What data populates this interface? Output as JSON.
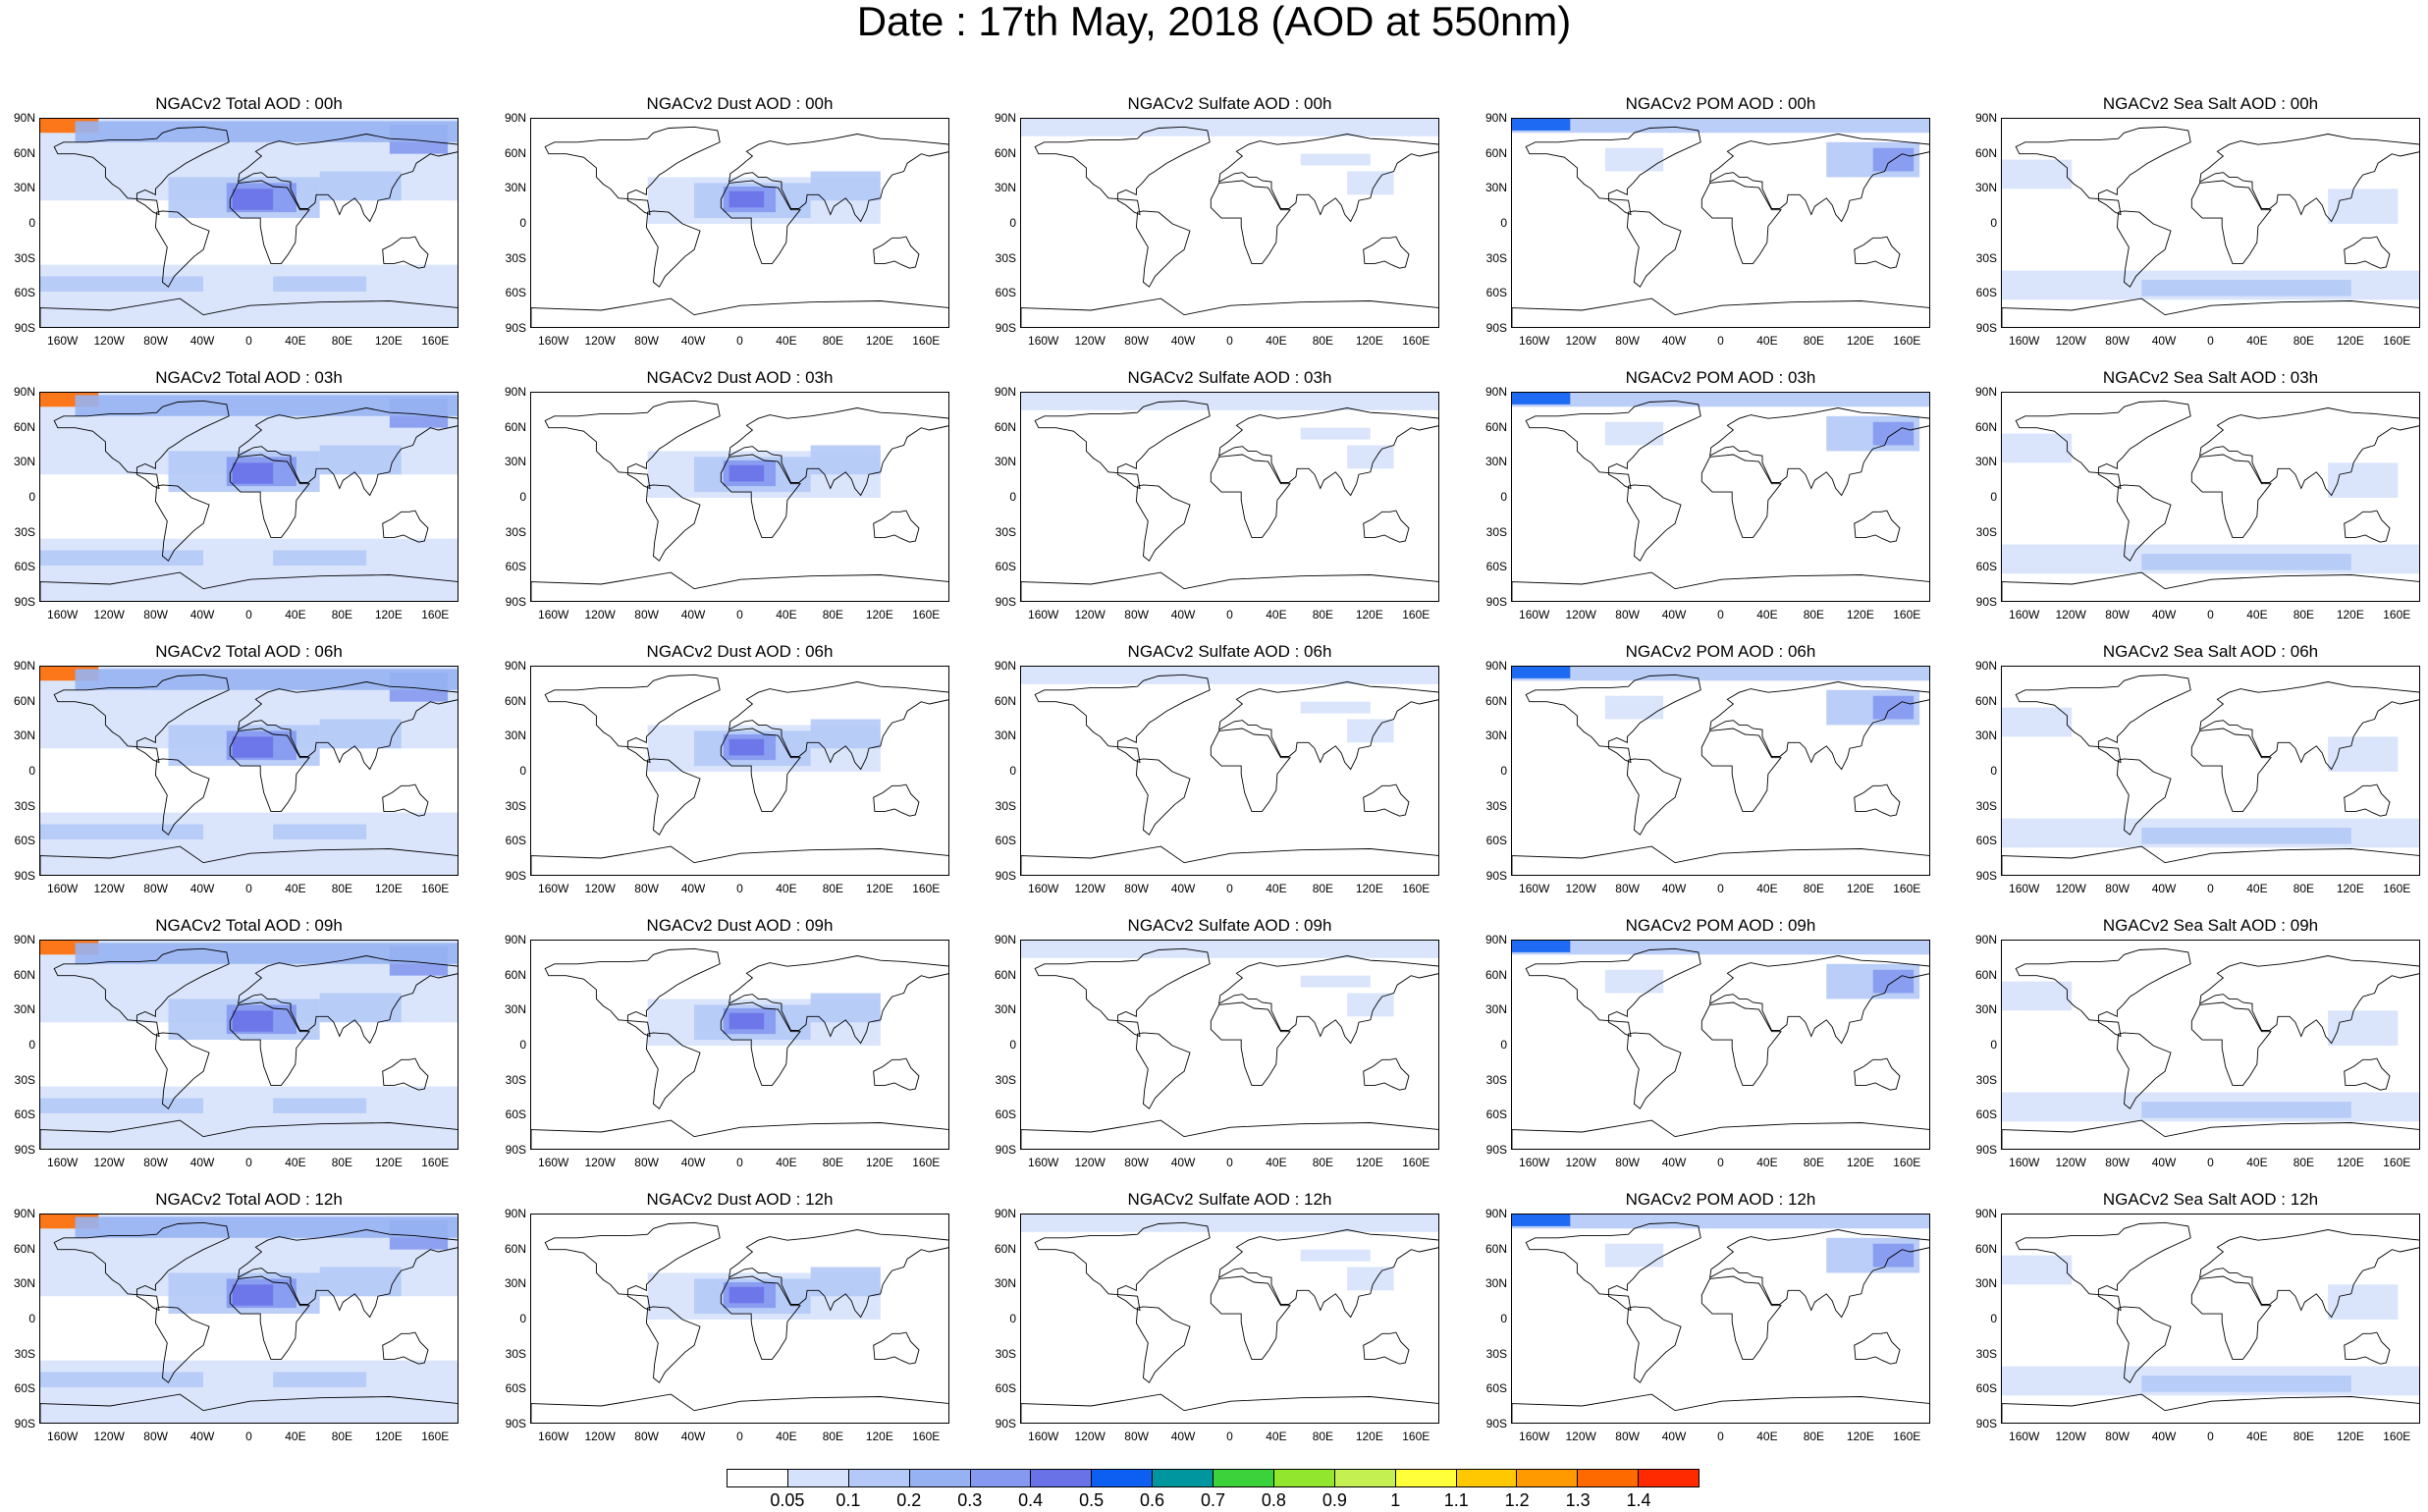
{
  "title": "Date : 17th May, 2018 (AOD at 550nm)",
  "lat_labels": [
    "90N",
    "60N",
    "30N",
    "0",
    "30S",
    "60S",
    "90S"
  ],
  "lon_labels": [
    "160W",
    "120W",
    "80W",
    "40W",
    "0",
    "40E",
    "80E",
    "120E",
    "160E"
  ],
  "panel_titles": [
    [
      "NGACv2 Total AOD : 00h",
      "NGACv2 Dust AOD : 00h",
      "NGACv2 Sulfate AOD : 00h",
      "NGACv2 POM AOD : 00h",
      "NGACv2 Sea Salt AOD : 00h"
    ],
    [
      "NGACv2 Total AOD : 03h",
      "NGACv2 Dust AOD : 03h",
      "NGACv2 Sulfate AOD : 03h",
      "NGACv2 POM AOD : 03h",
      "NGACv2 Sea Salt AOD : 03h"
    ],
    [
      "NGACv2 Total AOD : 06h",
      "NGACv2 Dust AOD : 06h",
      "NGACv2 Sulfate AOD : 06h",
      "NGACv2 POM AOD : 06h",
      "NGACv2 Sea Salt AOD : 06h"
    ],
    [
      "NGACv2 Total AOD : 09h",
      "NGACv2 Dust AOD : 09h",
      "NGACv2 Sulfate AOD : 09h",
      "NGACv2 POM AOD : 09h",
      "NGACv2 Sea Salt  AOD : 09h"
    ],
    [
      "NGACv2 Total AOD :  12h",
      "NGACv2 Dust AOD : 12h",
      "NGACv2 Sulfate AOD : 12h",
      "NGACv2 POM  AOD : 12h",
      "NGACv2 Sea Salt AOD : 12h"
    ]
  ],
  "colorbar": {
    "labels": [
      "0.05",
      "0.1",
      "0.2",
      "0.3",
      "0.4",
      "0.5",
      "0.6",
      "0.7",
      "0.8",
      "0.9",
      "1",
      "1.1",
      "1.2",
      "1.3",
      "1.4"
    ],
    "colors": [
      "#ffffff",
      "#d6e2fb",
      "#b4c9f7",
      "#97b2f2",
      "#8599f0",
      "#6a72e8",
      "#0d5ff2",
      "#0096a0",
      "#3cd23c",
      "#92e62d",
      "#c4f052",
      "#ffff3a",
      "#ffc800",
      "#ff9a00",
      "#ff6a00",
      "#ff2a00"
    ]
  }
}
